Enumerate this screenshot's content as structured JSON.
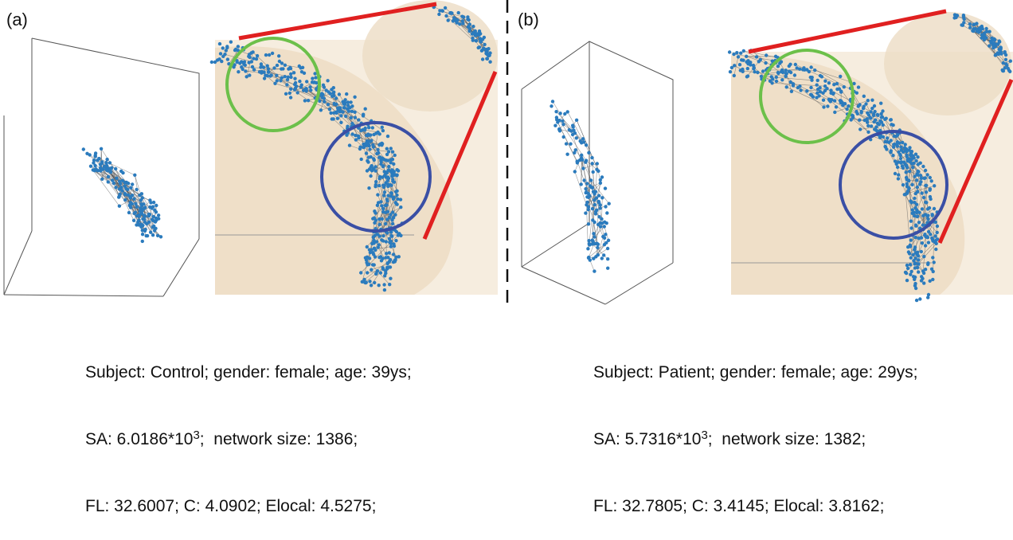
{
  "panels": [
    {
      "label": "(a)",
      "caption": {
        "line1": "Subject: Control; gender: female; age: 39ys;",
        "sa_prefix": "SA: 6.0186*10",
        "sa_exponent": "3",
        "sa_suffix": ";  network size: 1386;",
        "line3": "FL: 32.6007; C: 4.0902; Elocal: 4.5275;"
      }
    },
    {
      "label": "(b)",
      "caption": {
        "line1": "Subject: Patient; gender: female; age: 29ys;",
        "sa_prefix": "SA: 5.7316*10",
        "sa_exponent": "3",
        "sa_suffix": ";  network size: 1382;",
        "line3": "FL: 32.7805; C: 3.4145; Elocal: 3.8162;"
      }
    }
  ]
}
